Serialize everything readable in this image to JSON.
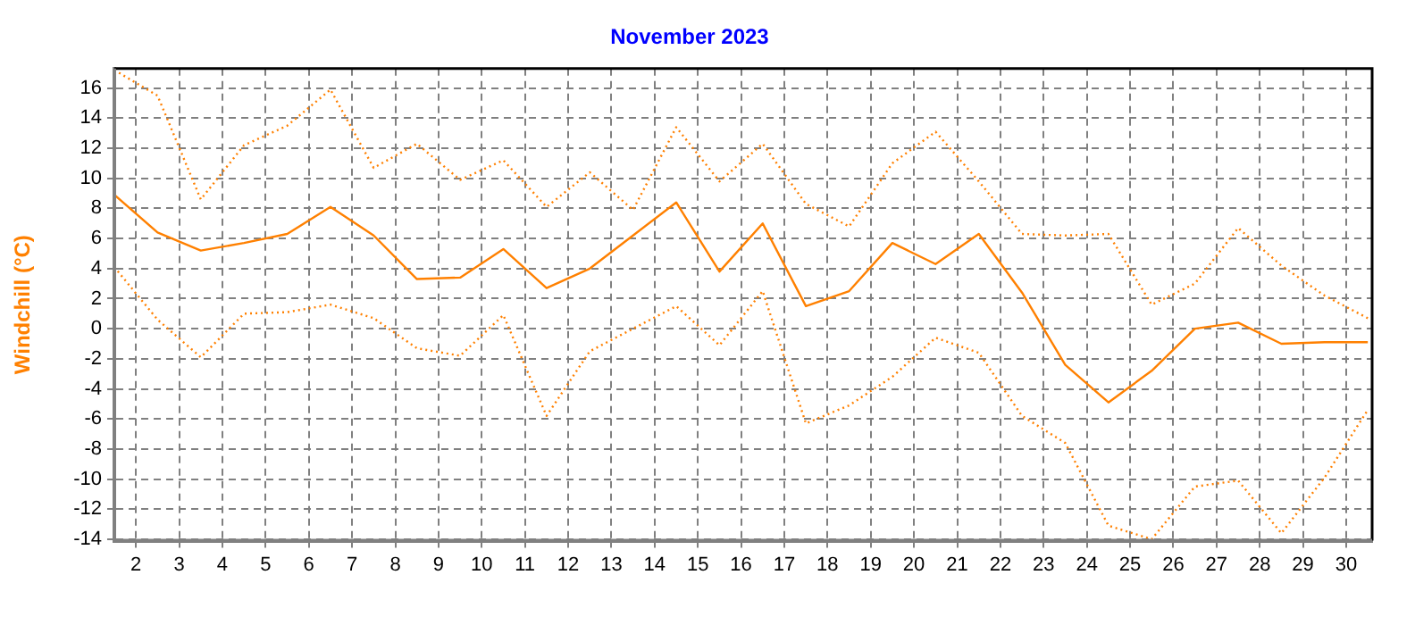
{
  "chart_data": {
    "type": "line",
    "title": "November 2023",
    "ylabel": "Windchill (°C)",
    "x": [
      1.5,
      2.5,
      3.5,
      4.5,
      5.5,
      6.5,
      7.5,
      8.5,
      9.5,
      10.5,
      11.5,
      12.5,
      13.5,
      14.5,
      15.5,
      16.5,
      17.5,
      18.5,
      19.5,
      20.5,
      21.5,
      22.5,
      23.5,
      24.5,
      25.5,
      26.5,
      27.5,
      28.5,
      29.5,
      30.5
    ],
    "series": [
      {
        "color": "#ff8000",
        "line_style": "dotted",
        "values": [
          17.2,
          15.5,
          8.6,
          12.2,
          13.5,
          15.9,
          10.7,
          12.3,
          9.9,
          11.2,
          8.1,
          10.4,
          7.9,
          13.4,
          9.8,
          12.3,
          8.3,
          6.8,
          11.0,
          13.1,
          9.8,
          6.3,
          6.2,
          6.3,
          1.6,
          3.0,
          6.7,
          4.2,
          2.2,
          0.7
        ]
      },
      {
        "color": "#ff8000",
        "line_style": "solid",
        "values": [
          8.9,
          6.4,
          5.2,
          5.7,
          6.3,
          8.1,
          6.2,
          3.3,
          3.4,
          5.3,
          2.7,
          4.0,
          6.2,
          8.4,
          3.8,
          7.0,
          1.5,
          2.5,
          5.7,
          4.3,
          6.3,
          2.4,
          -2.4,
          -4.9,
          -2.8,
          0.0,
          0.4,
          -1.0,
          -0.9,
          -0.9
        ]
      },
      {
        "color": "#ff8000",
        "line_style": "dotted",
        "values": [
          4.1,
          0.6,
          -1.9,
          1.0,
          1.1,
          1.6,
          0.7,
          -1.3,
          -1.8,
          0.9,
          -5.8,
          -1.5,
          0.0,
          1.5,
          -1.1,
          2.5,
          -6.3,
          -5.1,
          -3.2,
          -0.6,
          -1.6,
          -5.8,
          -7.6,
          -13.1,
          -14.0,
          -10.5,
          -10.1,
          -13.6,
          -9.9,
          -5.4
        ]
      }
    ],
    "xlim": [
      1.5,
      30.6
    ],
    "xticks": [
      2,
      3,
      4,
      5,
      6,
      7,
      8,
      9,
      10,
      11,
      12,
      13,
      14,
      15,
      16,
      17,
      18,
      19,
      20,
      21,
      22,
      23,
      24,
      25,
      26,
      27,
      28,
      29,
      30
    ],
    "ylim": [
      -14.1,
      17.3
    ],
    "yticks": [
      -14,
      -12,
      -10,
      -8,
      -6,
      -4,
      -2,
      0,
      2,
      4,
      6,
      8,
      10,
      12,
      14,
      16
    ],
    "grid": true,
    "legend": false,
    "marker": "none"
  }
}
